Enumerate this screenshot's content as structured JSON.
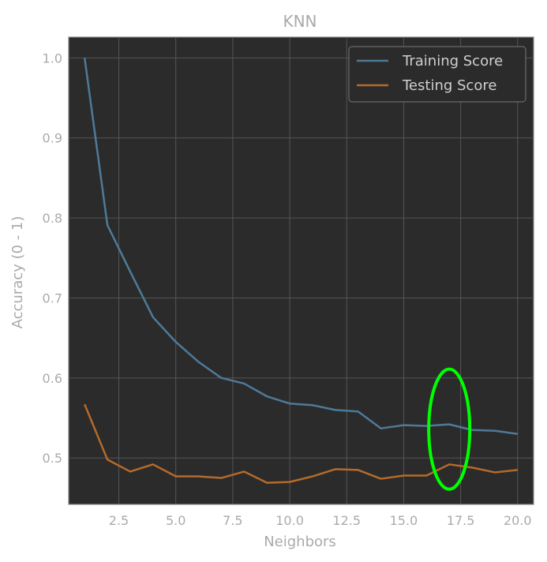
{
  "chart_data": {
    "type": "line",
    "title": "KNN",
    "xlabel": "Neighbors",
    "ylabel": "Accuracy (0 - 1)",
    "xlim": [
      0.3,
      20.7
    ],
    "ylim": [
      0.442,
      1.026
    ],
    "xticks": [
      "2.5",
      "5.0",
      "7.5",
      "10.0",
      "12.5",
      "15.0",
      "17.5",
      "20.0"
    ],
    "yticks": [
      "0.5",
      "0.6",
      "0.7",
      "0.8",
      "0.9",
      "1.0"
    ],
    "grid": true,
    "legend_position": "top-right",
    "x": [
      1,
      2,
      3,
      4,
      5,
      6,
      7,
      8,
      9,
      10,
      11,
      12,
      13,
      14,
      15,
      16,
      17,
      18,
      19,
      20
    ],
    "series": [
      {
        "name": "Training Score",
        "color": "#4e7a9a",
        "values": [
          1.0,
          0.791,
          0.733,
          0.676,
          0.645,
          0.62,
          0.6,
          0.593,
          0.577,
          0.568,
          0.566,
          0.56,
          0.558,
          0.537,
          0.541,
          0.54,
          0.542,
          0.535,
          0.534,
          0.53
        ]
      },
      {
        "name": "Testing Score",
        "color": "#b56a2b",
        "values": [
          0.567,
          0.498,
          0.483,
          0.492,
          0.477,
          0.477,
          0.475,
          0.483,
          0.469,
          0.47,
          0.477,
          0.486,
          0.485,
          0.474,
          0.478,
          0.478,
          0.492,
          0.488,
          0.482,
          0.485
        ]
      }
    ],
    "annotation": {
      "shape": "ellipse",
      "color": "#00ff00",
      "x_center": 17,
      "y_center": 0.536,
      "x_radius": 0.9,
      "y_radius": 0.075
    },
    "colors": {
      "plot_background": "#2b2b2b",
      "grid": "#555555",
      "text": "#aaaaaa"
    }
  }
}
